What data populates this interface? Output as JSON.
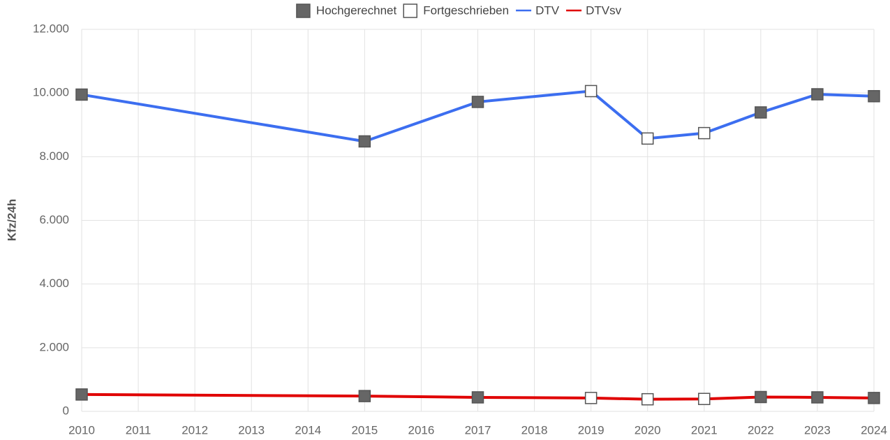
{
  "chart_data": {
    "type": "line",
    "y_label": "Kfz/24h",
    "x": [
      2010,
      2015,
      2017,
      2019,
      2020,
      2021,
      2022,
      2023,
      2024
    ],
    "marker_styles": [
      {
        "name": "Hochgerechnet",
        "fill": "#666666"
      },
      {
        "name": "Fortgeschrieben",
        "fill": "#ffffff"
      }
    ],
    "series": [
      {
        "name": "DTV",
        "color": "#3c6ef0",
        "values": [
          9950,
          8480,
          9720,
          10060,
          8570,
          8740,
          9390,
          9960,
          9900
        ],
        "markers": [
          0,
          0,
          0,
          1,
          1,
          1,
          0,
          0,
          0
        ]
      },
      {
        "name": "DTVsv",
        "color": "#e00000",
        "values": [
          530,
          480,
          440,
          420,
          380,
          390,
          450,
          440,
          420
        ],
        "markers": [
          0,
          0,
          0,
          1,
          1,
          1,
          0,
          0,
          0
        ]
      }
    ],
    "xlim": [
      2010,
      2024
    ],
    "xticks": [
      2010,
      2011,
      2012,
      2013,
      2014,
      2015,
      2016,
      2017,
      2018,
      2019,
      2020,
      2021,
      2022,
      2023,
      2024
    ],
    "ylim": [
      0,
      12000
    ],
    "yticks": [
      0,
      {
        "value": 2000,
        "label": "2.000"
      },
      {
        "value": 4000,
        "label": "4.000"
      },
      {
        "value": 6000,
        "label": "6.000"
      },
      {
        "value": 8000,
        "label": "8.000"
      },
      {
        "value": 10000,
        "label": "10.000"
      },
      {
        "value": 12000,
        "label": "12.000"
      }
    ],
    "grid": true,
    "legend": "top"
  }
}
